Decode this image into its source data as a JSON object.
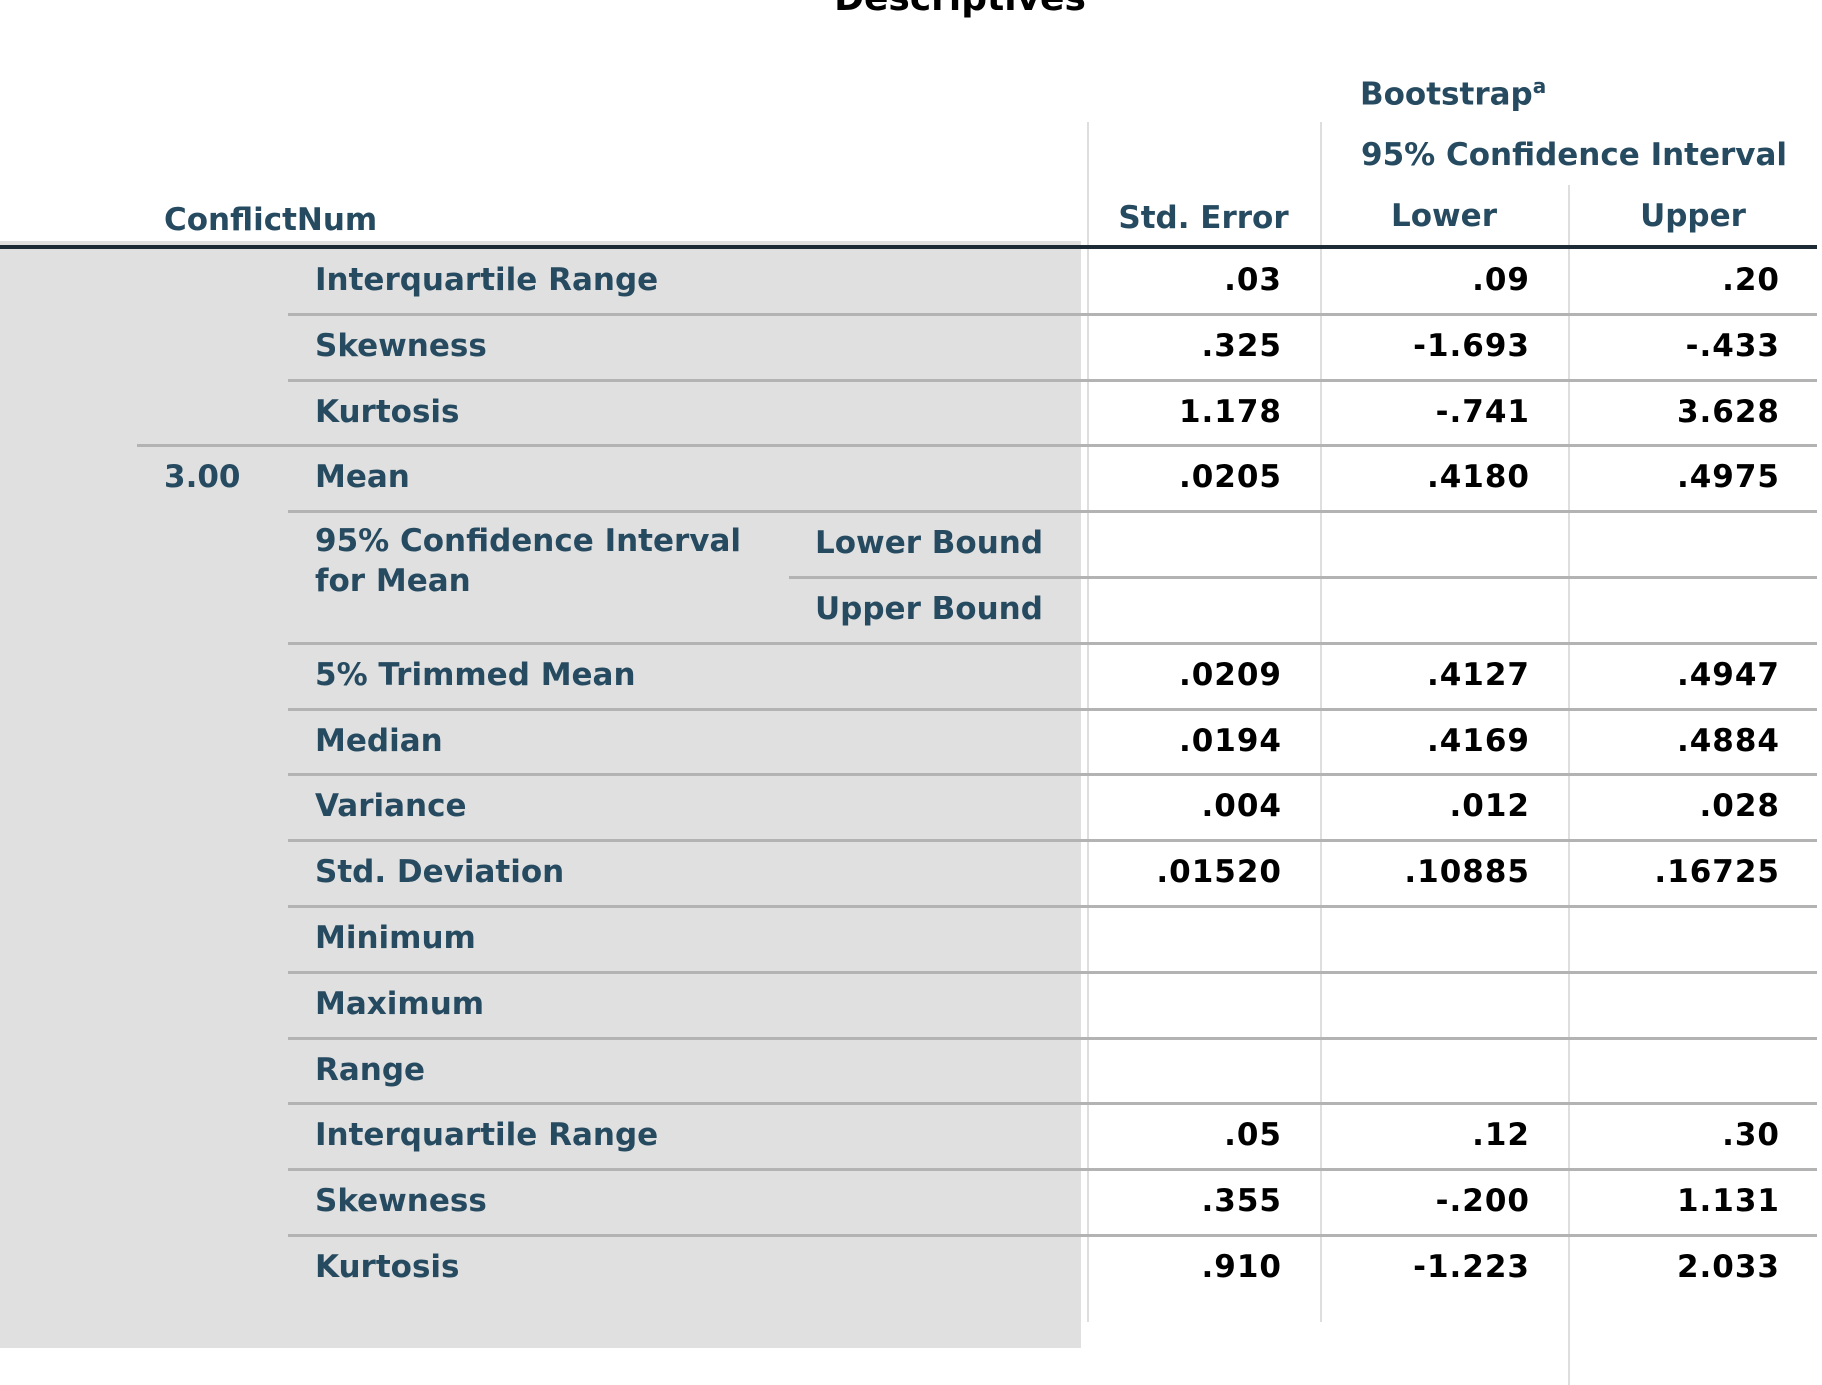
{
  "title": "Descriptives",
  "header": {
    "row_dim": "ConflictNum",
    "bootstrap": "Bootstrap",
    "bootstrap_footnote": "a",
    "ci": "95% Confidence Interval",
    "std_error": "Std. Error",
    "lower": "Lower",
    "upper": "Upper"
  },
  "group_label": "3.00",
  "rows": [
    {
      "label": "Interquartile Range",
      "sub": "",
      "se": ".03",
      "lower": ".09",
      "upper": ".20"
    },
    {
      "label": "Skewness",
      "sub": "",
      "se": ".325",
      "lower": "-1.693",
      "upper": "-.433"
    },
    {
      "label": "Kurtosis",
      "sub": "",
      "se": "1.178",
      "lower": "-.741",
      "upper": "3.628"
    },
    {
      "label": "Mean",
      "sub": "",
      "se": ".0205",
      "lower": ".4180",
      "upper": ".4975"
    },
    {
      "label": "95% Confidence Interval for Mean",
      "sub": "Lower Bound",
      "se": "",
      "lower": "",
      "upper": ""
    },
    {
      "label": "",
      "sub": "Upper Bound",
      "se": "",
      "lower": "",
      "upper": ""
    },
    {
      "label": "5% Trimmed Mean",
      "sub": "",
      "se": ".0209",
      "lower": ".4127",
      "upper": ".4947"
    },
    {
      "label": "Median",
      "sub": "",
      "se": ".0194",
      "lower": ".4169",
      "upper": ".4884"
    },
    {
      "label": "Variance",
      "sub": "",
      "se": ".004",
      "lower": ".012",
      "upper": ".028"
    },
    {
      "label": "Std. Deviation",
      "sub": "",
      "se": ".01520",
      "lower": ".10885",
      "upper": ".16725"
    },
    {
      "label": "Minimum",
      "sub": "",
      "se": "",
      "lower": "",
      "upper": ""
    },
    {
      "label": "Maximum",
      "sub": "",
      "se": "",
      "lower": "",
      "upper": ""
    },
    {
      "label": "Range",
      "sub": "",
      "se": "",
      "lower": "",
      "upper": ""
    },
    {
      "label": "Interquartile Range",
      "sub": "",
      "se": ".05",
      "lower": ".12",
      "upper": ".30"
    },
    {
      "label": "Skewness",
      "sub": "",
      "se": ".355",
      "lower": "-.200",
      "upper": "1.131"
    },
    {
      "label": "Kurtosis",
      "sub": "",
      "se": ".910",
      "lower": "-1.223",
      "upper": "2.033"
    }
  ]
}
